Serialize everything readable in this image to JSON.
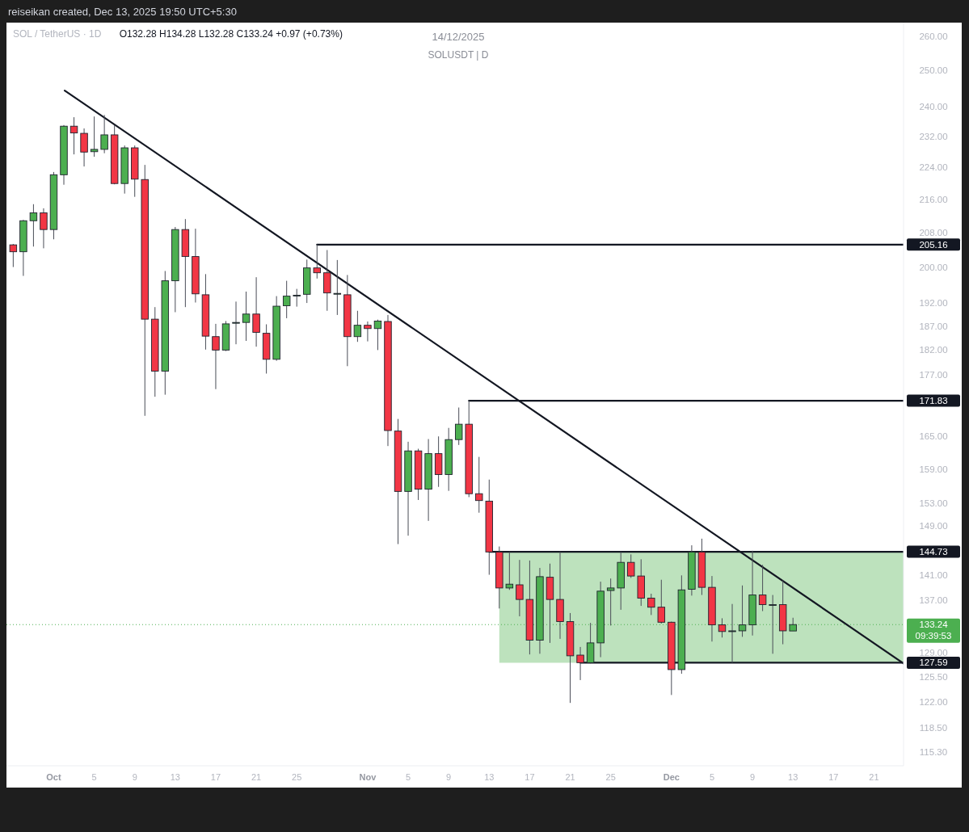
{
  "chart_data": {
    "type": "candlestick",
    "title": "SOL / TetherUS · 1D",
    "subtitle": "O132.28 H134.28 L132.28 C133.24 +0.97 (+0.73%)",
    "annotations": [
      "reiseikan created, Dec 13, 2025 19:50 UTC+5:30",
      "14/12/2025",
      "SOLUSDT | D",
      "09:39:53"
    ],
    "x": [
      "2025-09-27",
      "2025-09-28",
      "2025-09-29",
      "2025-09-30",
      "2025-10-01",
      "2025-10-02",
      "2025-10-03",
      "2025-10-04",
      "2025-10-05",
      "2025-10-06",
      "2025-10-07",
      "2025-10-08",
      "2025-10-09",
      "2025-10-10",
      "2025-10-11",
      "2025-10-12",
      "2025-10-13",
      "2025-10-14",
      "2025-10-15",
      "2025-10-16",
      "2025-10-17",
      "2025-10-18",
      "2025-10-19",
      "2025-10-20",
      "2025-10-21",
      "2025-10-22",
      "2025-10-23",
      "2025-10-24",
      "2025-10-25",
      "2025-10-26",
      "2025-10-27",
      "2025-10-28",
      "2025-10-29",
      "2025-10-30",
      "2025-10-31",
      "2025-11-01",
      "2025-11-02",
      "2025-11-03",
      "2025-11-04",
      "2025-11-05",
      "2025-11-06",
      "2025-11-07",
      "2025-11-08",
      "2025-11-09",
      "2025-11-10",
      "2025-11-11",
      "2025-11-12",
      "2025-11-13",
      "2025-11-14",
      "2025-11-15",
      "2025-11-16",
      "2025-11-17",
      "2025-11-18",
      "2025-11-19",
      "2025-11-20",
      "2025-11-21",
      "2025-11-22",
      "2025-11-23",
      "2025-11-24",
      "2025-11-25",
      "2025-11-26",
      "2025-11-27",
      "2025-11-28",
      "2025-11-29",
      "2025-11-30",
      "2025-12-01",
      "2025-12-02",
      "2025-12-03",
      "2025-12-04",
      "2025-12-05",
      "2025-12-06",
      "2025-12-07",
      "2025-12-08",
      "2025-12-09",
      "2025-12-10",
      "2025-12-11",
      "2025-12-12",
      "2025-12-13"
    ],
    "ohlc": [
      [
        205.1,
        205.3,
        200.0,
        203.5
      ],
      [
        203.5,
        211.0,
        198.0,
        210.8
      ],
      [
        210.8,
        214.8,
        204.7,
        212.7
      ],
      [
        212.7,
        213.8,
        204.3,
        208.7
      ],
      [
        208.7,
        222.8,
        206.4,
        222.1
      ],
      [
        222.1,
        235.0,
        219.6,
        234.7
      ],
      [
        234.7,
        237.1,
        227.3,
        232.9
      ],
      [
        232.8,
        234.1,
        224.2,
        227.9
      ],
      [
        228.0,
        237.3,
        226.7,
        228.6
      ],
      [
        228.6,
        237.7,
        227.6,
        232.4
      ],
      [
        232.4,
        235.0,
        219.7,
        219.9
      ],
      [
        219.9,
        229.6,
        217.4,
        229.0
      ],
      [
        229.0,
        229.6,
        216.6,
        221.0
      ],
      [
        220.9,
        224.6,
        168.9,
        188.5
      ],
      [
        188.5,
        191.1,
        172.6,
        177.7
      ],
      [
        177.7,
        199.1,
        173.0,
        196.9
      ],
      [
        196.9,
        209.3,
        190.0,
        208.7
      ],
      [
        208.7,
        211.2,
        191.1,
        202.4
      ],
      [
        202.4,
        208.9,
        192.1,
        194.0
      ],
      [
        193.8,
        198.4,
        182.1,
        184.9
      ],
      [
        184.8,
        187.5,
        174.1,
        182.0
      ],
      [
        182.0,
        188.1,
        181.8,
        187.5
      ],
      [
        187.8,
        192.3,
        183.2,
        187.8
      ],
      [
        187.8,
        194.5,
        183.9,
        189.6
      ],
      [
        189.6,
        197.7,
        182.7,
        185.7
      ],
      [
        185.5,
        187.4,
        177.2,
        180.1
      ],
      [
        180.1,
        193.5,
        179.8,
        191.3
      ],
      [
        191.4,
        196.9,
        188.7,
        193.5
      ],
      [
        193.7,
        195.1,
        191.2,
        193.7
      ],
      [
        193.9,
        201.7,
        192.0,
        199.8
      ],
      [
        199.8,
        205.16,
        197.4,
        198.7
      ],
      [
        198.7,
        203.9,
        190.3,
        194.2
      ],
      [
        194.1,
        201.6,
        189.4,
        194.1
      ],
      [
        193.8,
        198.2,
        178.7,
        184.8
      ],
      [
        184.8,
        190.3,
        183.7,
        187.2
      ],
      [
        187.2,
        188.0,
        183.8,
        186.5
      ],
      [
        186.5,
        188.4,
        182.0,
        188.1
      ],
      [
        188.0,
        189.4,
        163.2,
        166.1
      ],
      [
        166.0,
        168.3,
        146.0,
        155.0
      ],
      [
        155.0,
        164.0,
        147.4,
        162.3
      ],
      [
        162.3,
        162.7,
        153.5,
        155.4
      ],
      [
        155.4,
        164.5,
        149.9,
        161.8
      ],
      [
        161.8,
        165.0,
        155.8,
        158.0
      ],
      [
        158.0,
        166.6,
        155.1,
        164.4
      ],
      [
        164.4,
        170.5,
        163.4,
        167.3
      ],
      [
        167.3,
        171.83,
        154.0,
        154.6
      ],
      [
        154.6,
        161.2,
        151.3,
        153.4
      ],
      [
        153.3,
        157.1,
        141.0,
        144.7
      ],
      [
        144.7,
        145.6,
        135.7,
        138.9
      ],
      [
        138.9,
        144.7,
        138.6,
        139.5
      ],
      [
        139.4,
        143.4,
        134.5,
        137.1
      ],
      [
        137.1,
        143.3,
        128.8,
        130.9
      ],
      [
        130.9,
        142.1,
        128.9,
        140.7
      ],
      [
        140.6,
        142.8,
        130.5,
        137.1
      ],
      [
        137.1,
        144.7,
        131.1,
        133.7
      ],
      [
        133.7,
        135.0,
        121.9,
        128.6
      ],
      [
        128.7,
        129.9,
        125.1,
        127.6
      ],
      [
        127.6,
        133.5,
        127.5,
        130.5
      ],
      [
        130.5,
        139.9,
        128.4,
        138.4
      ],
      [
        138.5,
        140.4,
        133.1,
        138.9
      ],
      [
        138.9,
        144.7,
        135.5,
        143.0
      ],
      [
        143.0,
        144.3,
        140.5,
        140.8
      ],
      [
        140.8,
        143.5,
        136.1,
        137.3
      ],
      [
        137.3,
        138.0,
        134.7,
        135.9
      ],
      [
        135.9,
        140.2,
        133.4,
        133.6
      ],
      [
        133.6,
        133.7,
        123.0,
        126.6
      ],
      [
        126.6,
        140.9,
        126.0,
        138.6
      ],
      [
        138.7,
        145.8,
        137.7,
        144.7
      ],
      [
        144.7,
        146.9,
        137.8,
        139.0
      ],
      [
        139.0,
        140.8,
        130.7,
        133.2
      ],
      [
        133.2,
        134.2,
        131.3,
        132.2
      ],
      [
        132.3,
        136.4,
        127.6,
        132.3
      ],
      [
        132.3,
        139.3,
        131.4,
        133.2
      ],
      [
        133.2,
        144.9,
        131.6,
        137.8
      ],
      [
        137.8,
        142.6,
        135.3,
        136.3
      ],
      [
        136.3,
        137.8,
        128.9,
        136.3
      ],
      [
        136.3,
        140.1,
        130.3,
        132.3
      ],
      [
        132.28,
        134.28,
        132.28,
        133.24
      ]
    ],
    "colors": [
      "#f23645",
      "#4caf50",
      "#4caf50",
      "#f23645",
      "#4caf50",
      "#4caf50",
      "#f23645",
      "#f23645",
      "#4caf50",
      "#4caf50",
      "#f23645",
      "#4caf50",
      "#f23645",
      "#f23645",
      "#f23645",
      "#4caf50",
      "#4caf50",
      "#f23645",
      "#f23645",
      "#f23645",
      "#f23645",
      "#4caf50",
      "#4caf50",
      "#4caf50",
      "#f23645",
      "#f23645",
      "#4caf50",
      "#4caf50",
      "#4caf50",
      "#4caf50",
      "#f23645",
      "#f23645",
      "#4caf50",
      "#f23645",
      "#4caf50",
      "#f23645",
      "#4caf50",
      "#f23645",
      "#f23645",
      "#4caf50",
      "#f23645",
      "#4caf50",
      "#f23645",
      "#4caf50",
      "#4caf50",
      "#f23645",
      "#f23645",
      "#f23645",
      "#f23645",
      "#4caf50",
      "#f23645",
      "#f23645",
      "#4caf50",
      "#f23645",
      "#f23645",
      "#f23645",
      "#f23645",
      "#4caf50",
      "#4caf50",
      "#4caf50",
      "#4caf50",
      "#f23645",
      "#f23645",
      "#f23645",
      "#f23645",
      "#f23645",
      "#4caf50",
      "#4caf50",
      "#f23645",
      "#f23645",
      "#f23645",
      "#4caf50",
      "#4caf50",
      "#4caf50",
      "#f23645",
      "#4caf50",
      "#f23645",
      "#4caf50"
    ],
    "series": [
      {
        "type": "line",
        "x": [
          "2025-10-02T02:00",
          "2025-12-23T22:00"
        ],
        "values": [
          244.4,
          127.5
        ],
        "color": "#131722"
      },
      {
        "type": "line",
        "x": [
          "2025-10-27",
          "2025-12-23T22:00"
        ],
        "values": [
          205.16,
          205.16
        ],
        "color": "#131722",
        "value_labels": [
          null,
          "205.16"
        ]
      },
      {
        "type": "line",
        "x": [
          "2025-11-11",
          "2025-12-23T22:00"
        ],
        "values": [
          171.83,
          171.83
        ],
        "color": "#131722",
        "value_labels": [
          null,
          "171.83"
        ]
      },
      {
        "type": "line",
        "x": [
          "2025-11-13",
          "2025-11-14",
          "2025-12-23T22:00"
        ],
        "values": [
          144.73,
          144.73,
          144.73
        ],
        "lower": [
          null,
          127.59,
          127.59
        ],
        "upper": [
          null,
          144.73,
          144.73
        ],
        "color": "#131722",
        "value_labels": [
          null,
          null,
          "144.73"
        ]
      },
      {
        "type": "line",
        "x": [
          "2025-11-22",
          "2025-12-23T22:00"
        ],
        "values": [
          127.59,
          127.59
        ],
        "color": "#131722",
        "value_labels": [
          null,
          "127.59"
        ]
      }
    ],
    "ref_lines": [
      {
        "axis": "y",
        "value": 133.24,
        "label": "133.24",
        "color": "#4caf50",
        "line_style": "dotted"
      }
    ],
    "log": true,
    "xlim": [
      "2025-09-26T08:00",
      "2025-12-23T22:00"
    ],
    "xticks": [
      {
        "value": "2025-10-01",
        "label": "Oct"
      },
      {
        "value": "2025-10-05",
        "label": "5"
      },
      {
        "value": "2025-10-09",
        "label": "9"
      },
      {
        "value": "2025-10-13",
        "label": "13"
      },
      {
        "value": "2025-10-17",
        "label": "17"
      },
      {
        "value": "2025-10-21",
        "label": "21"
      },
      {
        "value": "2025-10-25",
        "label": "25"
      },
      {
        "value": "2025-11-01",
        "label": "Nov"
      },
      {
        "value": "2025-11-05",
        "label": "5"
      },
      {
        "value": "2025-11-09",
        "label": "9"
      },
      {
        "value": "2025-11-13",
        "label": "13"
      },
      {
        "value": "2025-11-17",
        "label": "17"
      },
      {
        "value": "2025-11-21",
        "label": "21"
      },
      {
        "value": "2025-11-25",
        "label": "25"
      },
      {
        "value": "2025-12-01",
        "label": "Dec"
      },
      {
        "value": "2025-12-05",
        "label": "5"
      },
      {
        "value": "2025-12-09",
        "label": "9"
      },
      {
        "value": "2025-12-13",
        "label": "13"
      },
      {
        "value": "2025-12-17",
        "label": "17"
      },
      {
        "value": "2025-12-21",
        "label": "21"
      }
    ],
    "ylim": [
      113.5,
      264
    ],
    "yticks": [
      {
        "value": 260,
        "label": "260.00"
      },
      {
        "value": 250,
        "label": "250.00"
      },
      {
        "value": 240,
        "label": "240.00"
      },
      {
        "value": 232,
        "label": "232.00"
      },
      {
        "value": 224,
        "label": "224.00"
      },
      {
        "value": 216,
        "label": "216.00"
      },
      {
        "value": 208,
        "label": "208.00"
      },
      {
        "value": 200,
        "label": "200.00"
      },
      {
        "value": 192,
        "label": "192.00"
      },
      {
        "value": 187,
        "label": "187.00"
      },
      {
        "value": 182,
        "label": "182.00"
      },
      {
        "value": 177,
        "label": "177.00"
      },
      {
        "value": 165,
        "label": "165.00"
      },
      {
        "value": 159,
        "label": "159.00"
      },
      {
        "value": 153,
        "label": "153.00"
      },
      {
        "value": 149,
        "label": "149.00"
      },
      {
        "value": 141,
        "label": "141.00"
      },
      {
        "value": 137,
        "label": "137.00"
      },
      {
        "value": 129,
        "label": "129.00"
      },
      {
        "value": 125.5,
        "label": "125.50"
      },
      {
        "value": 122,
        "label": "122.00"
      },
      {
        "value": 118.5,
        "label": "118.50"
      },
      {
        "value": 115.3,
        "label": "115.30"
      }
    ]
  }
}
